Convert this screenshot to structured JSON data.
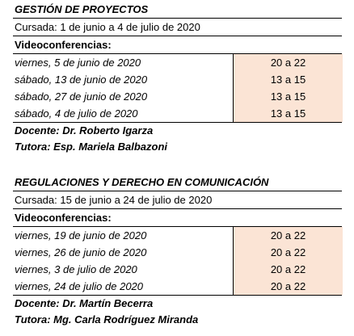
{
  "courses": [
    {
      "title": "GESTIÓN DE PROYECTOS",
      "cursada": "Cursada: 1 de junio a 4 de julio de 2020",
      "videoconf_label": "Videoconferencias:",
      "sessions": [
        {
          "date": "viernes, 5 de junio de 2020",
          "time": "20 a 22"
        },
        {
          "date": "sábado, 13 de junio de 2020",
          "time": "13 a 15"
        },
        {
          "date": "sábado, 27 de junio de 2020",
          "time": "13 a 15"
        },
        {
          "date": "sábado, 4 de julio de 2020",
          "time": "13 a 15"
        }
      ],
      "docente": "Docente: Dr. Roberto Igarza",
      "tutora": "Tutora: Esp. Mariela Balbazoni"
    },
    {
      "title": "REGULACIONES Y DERECHO EN COMUNICACIÓN",
      "cursada": "Cursada: 15 de junio a 24 de julio de 2020",
      "videoconf_label": "Videoconferencias:",
      "sessions": [
        {
          "date": "viernes, 19 de junio de 2020",
          "time": "20 a 22"
        },
        {
          "date": "viernes, 26 de junio de 2020",
          "time": "20 a 22"
        },
        {
          "date": "viernes, 3 de julio de 2020",
          "time": "20 a 22"
        },
        {
          "date": "viernes, 24 de julio de 2020",
          "time": "20 a 22"
        }
      ],
      "docente": "Docente: Dr. Martín Becerra",
      "tutora": "Tutora: Mg. Carla Rodríguez Miranda"
    }
  ],
  "colors": {
    "time_cell_bg": "#fbe4d5"
  }
}
